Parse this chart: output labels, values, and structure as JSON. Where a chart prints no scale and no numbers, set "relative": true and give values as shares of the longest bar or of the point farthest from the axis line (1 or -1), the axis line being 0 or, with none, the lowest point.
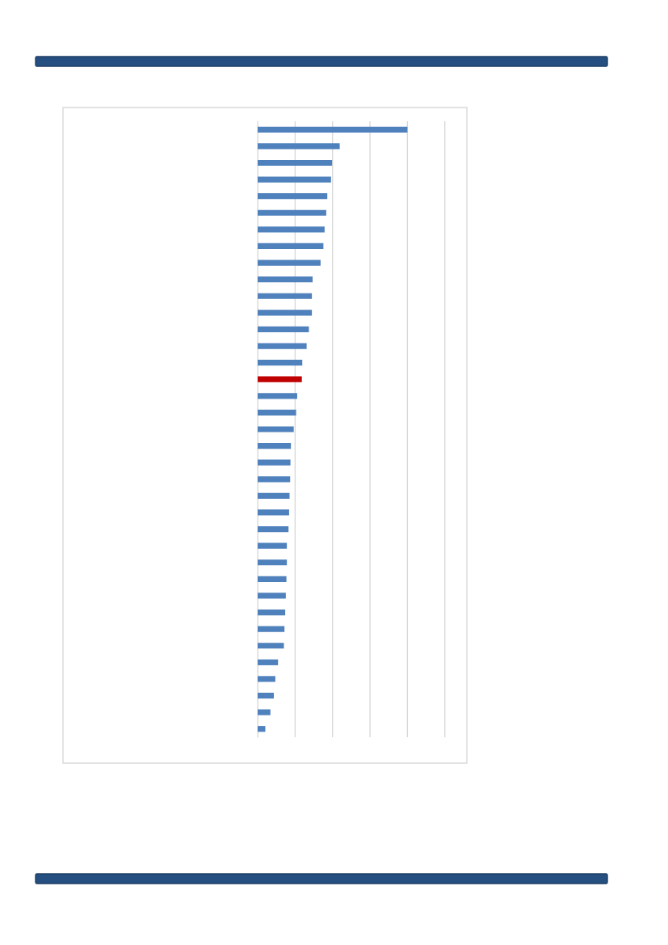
{
  "chart_data": {
    "type": "bar",
    "orientation": "horizontal",
    "relative": true,
    "grid": "x",
    "legend": false,
    "categories": [
      null,
      null,
      null,
      null,
      null,
      null,
      null,
      null,
      null,
      null,
      null,
      null,
      null,
      null,
      null,
      null,
      null,
      null,
      null,
      null,
      null,
      null,
      null,
      null,
      null,
      null,
      null,
      null,
      null,
      null,
      null,
      null,
      null,
      null,
      null,
      null,
      null
    ],
    "values": [
      1,
      0.548,
      0.497,
      0.49,
      0.465,
      0.458,
      0.447,
      0.439,
      0.42,
      0.367,
      0.362,
      0.362,
      0.342,
      0.327,
      0.298,
      0.295,
      0.264,
      0.257,
      0.241,
      0.222,
      0.219,
      0.217,
      0.213,
      0.21,
      0.206,
      0.195,
      0.195,
      0.192,
      0.188,
      0.184,
      0.179,
      0.175,
      0.136,
      0.118,
      0.108,
      0.085,
      0.051
    ],
    "colors": [
      "#4f81bd",
      "#4f81bd",
      "#4f81bd",
      "#4f81bd",
      "#4f81bd",
      "#4f81bd",
      "#4f81bd",
      "#4f81bd",
      "#4f81bd",
      "#4f81bd",
      "#4f81bd",
      "#4f81bd",
      "#4f81bd",
      "#4f81bd",
      "#4f81bd",
      "#c00000",
      "#4f81bd",
      "#4f81bd",
      "#4f81bd",
      "#4f81bd",
      "#4f81bd",
      "#4f81bd",
      "#4f81bd",
      "#4f81bd",
      "#4f81bd",
      "#4f81bd",
      "#4f81bd",
      "#4f81bd",
      "#4f81bd",
      "#4f81bd",
      "#4f81bd",
      "#4f81bd",
      "#4f81bd",
      "#4f81bd",
      "#4f81bd",
      "#4f81bd",
      "#4f81bd"
    ]
  }
}
